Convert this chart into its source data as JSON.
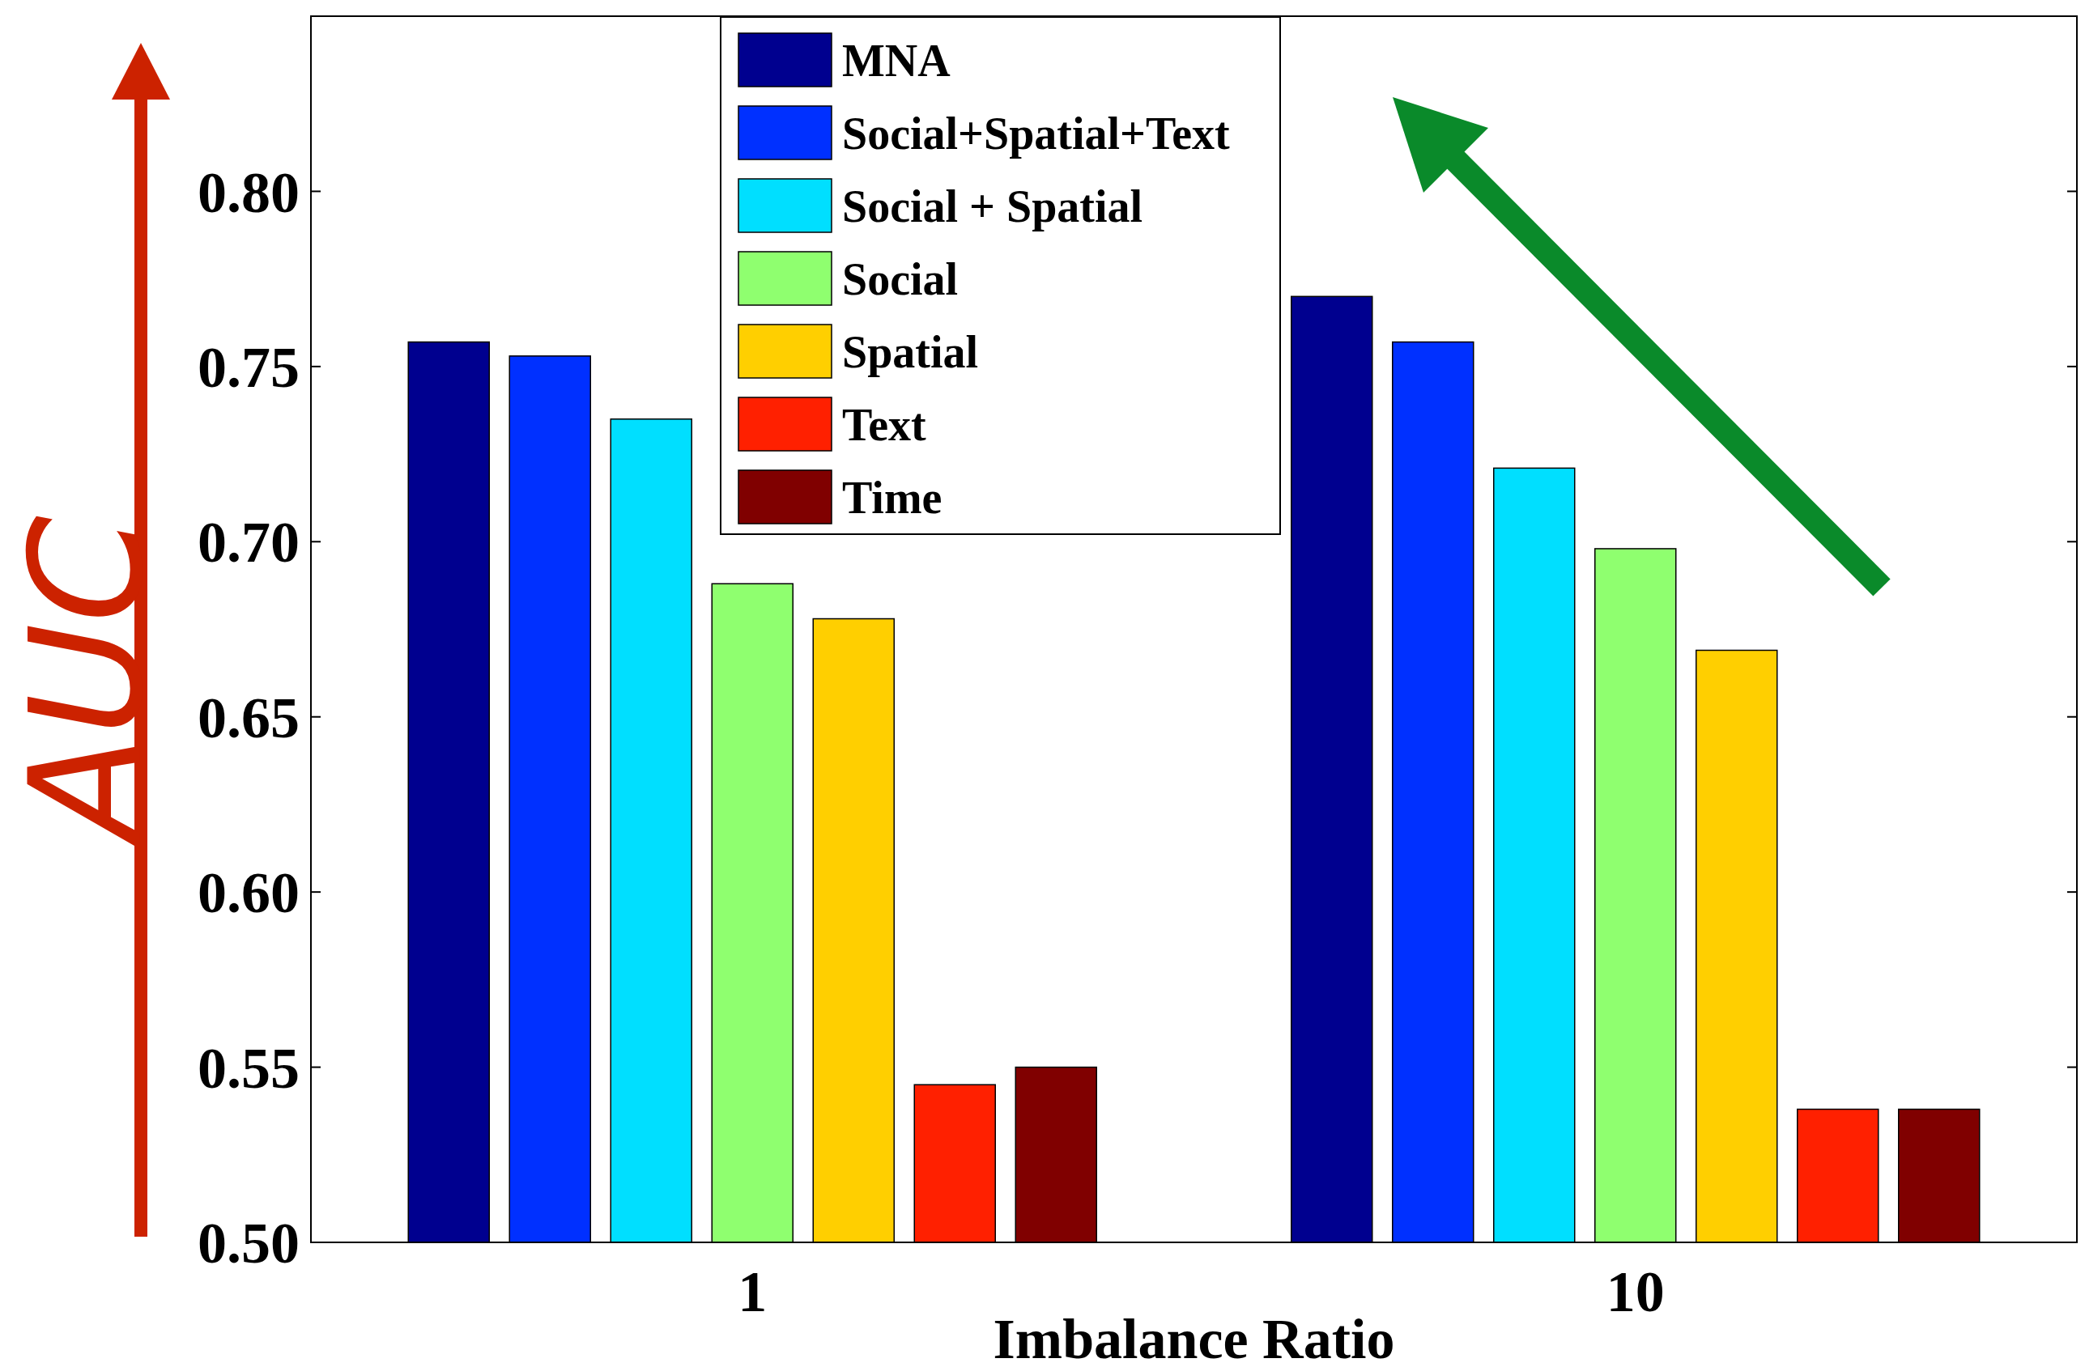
{
  "chart_data": {
    "type": "bar",
    "xlabel": "Imbalance Ratio",
    "ylabel": "AUC",
    "categories": [
      "1",
      "10"
    ],
    "series": [
      {
        "name": "MNA",
        "color": "#00008f",
        "values": [
          0.757,
          0.77
        ]
      },
      {
        "name": "Social+Spatial+Text",
        "color": "#0030ff",
        "values": [
          0.753,
          0.757
        ]
      },
      {
        "name": "Social + Spatial",
        "color": "#00dfff",
        "values": [
          0.735,
          0.721
        ]
      },
      {
        "name": "Social",
        "color": "#8fff6f",
        "values": [
          0.688,
          0.698
        ]
      },
      {
        "name": "Spatial",
        "color": "#ffcf00",
        "values": [
          0.678,
          0.669
        ]
      },
      {
        "name": "Text",
        "color": "#ff2000",
        "values": [
          0.545,
          0.538
        ]
      },
      {
        "name": "Time",
        "color": "#800000",
        "values": [
          0.55,
          0.538
        ]
      }
    ],
    "ylim": [
      0.5,
      0.85
    ],
    "yticks": [
      {
        "value": 0.5,
        "label": "0.50"
      },
      {
        "value": 0.55,
        "label": "0.55"
      },
      {
        "value": 0.6,
        "label": "0.60"
      },
      {
        "value": 0.65,
        "label": "0.65"
      },
      {
        "value": 0.7,
        "label": "0.70"
      },
      {
        "value": 0.75,
        "label": "0.75"
      },
      {
        "value": 0.8,
        "label": "0.80"
      }
    ],
    "grid": false,
    "legend": "top"
  }
}
